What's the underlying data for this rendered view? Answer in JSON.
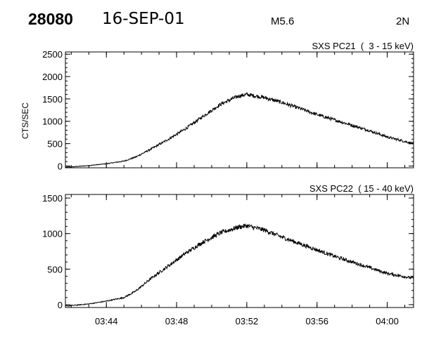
{
  "header": {
    "event_id": "28080",
    "date": "16-SEP-01",
    "goes_class": "M5.6",
    "position": "2N"
  },
  "chart_data": [
    {
      "type": "line",
      "title": "SXS PC21  (  3 - 15 keV)",
      "ylabel": "CTS/SEC",
      "xlim": [
        "03:41:40",
        "04:01:30"
      ],
      "ylim": [
        -40,
        2550
      ],
      "y_ticks": [
        0,
        500,
        1000,
        1500,
        2000,
        2500
      ],
      "x_ticks": [
        "03:44",
        "03:48",
        "03:52",
        "03:56",
        "04:00"
      ],
      "show_x_tick_labels": false,
      "grid": false,
      "noise": 22,
      "x": [
        "03:41:40",
        "03:43:00",
        "03:44:00",
        "03:45:00",
        "03:45:40",
        "03:46:30",
        "03:47:30",
        "03:48:30",
        "03:49:30",
        "03:50:30",
        "03:51:30",
        "03:52:00",
        "03:53:00",
        "03:54:00",
        "03:55:00",
        "03:56:00",
        "03:57:00",
        "03:58:00",
        "03:59:00",
        "04:00:00",
        "04:01:30"
      ],
      "values": [
        -30,
        10,
        50,
        110,
        200,
        370,
        590,
        830,
        1110,
        1380,
        1560,
        1600,
        1530,
        1420,
        1290,
        1150,
        1030,
        910,
        790,
        650,
        500
      ]
    },
    {
      "type": "line",
      "title": "SXS PC22  ( 15 - 40 keV)",
      "ylabel": "",
      "xlim": [
        "03:41:40",
        "04:01:30"
      ],
      "ylim": [
        -40,
        1550
      ],
      "y_ticks": [
        0,
        500,
        1000,
        1500
      ],
      "x_ticks": [
        "03:44",
        "03:48",
        "03:52",
        "03:56",
        "04:00"
      ],
      "show_x_tick_labels": true,
      "grid": false,
      "noise": 20,
      "x": [
        "03:41:40",
        "03:43:00",
        "03:44:00",
        "03:45:00",
        "03:45:40",
        "03:46:30",
        "03:47:30",
        "03:48:30",
        "03:49:30",
        "03:50:30",
        "03:51:30",
        "03:52:00",
        "03:53:00",
        "03:54:00",
        "03:55:00",
        "03:56:00",
        "03:57:00",
        "03:58:00",
        "03:59:00",
        "04:00:00",
        "04:01:30"
      ],
      "values": [
        -20,
        10,
        50,
        100,
        190,
        360,
        540,
        720,
        880,
        1010,
        1090,
        1110,
        1050,
        950,
        860,
        770,
        680,
        600,
        520,
        440,
        370
      ]
    }
  ]
}
